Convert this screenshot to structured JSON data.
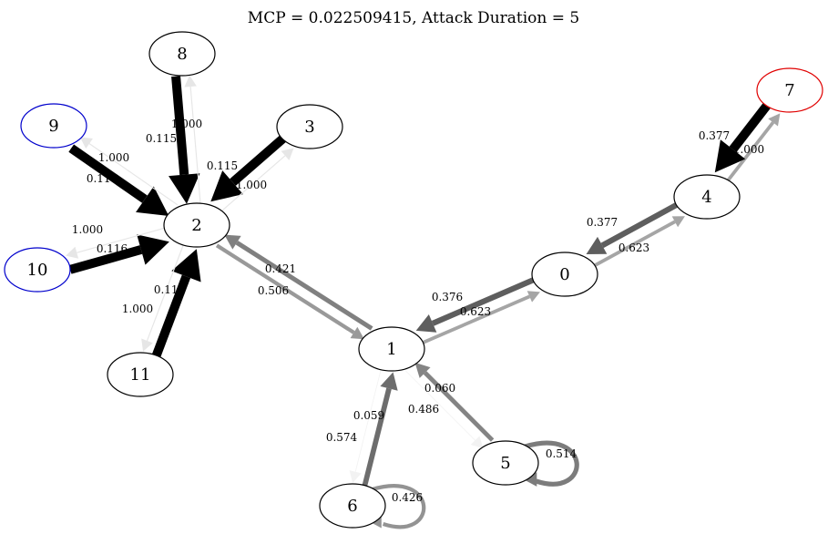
{
  "title": "MCP = 0.022509415, Attack Duration = 5",
  "nodes": [
    {
      "id": "0",
      "color": "#000000"
    },
    {
      "id": "1",
      "color": "#000000"
    },
    {
      "id": "2",
      "color": "#000000"
    },
    {
      "id": "3",
      "color": "#000000"
    },
    {
      "id": "4",
      "color": "#000000"
    },
    {
      "id": "5",
      "color": "#000000"
    },
    {
      "id": "6",
      "color": "#000000"
    },
    {
      "id": "7",
      "color": "#e00000"
    },
    {
      "id": "8",
      "color": "#000000"
    },
    {
      "id": "9",
      "color": "#0000cc"
    },
    {
      "id": "10",
      "color": "#0000cc"
    },
    {
      "id": "11",
      "color": "#000000"
    }
  ],
  "edges": [
    {
      "from": "8",
      "to": "2",
      "label": "1.000",
      "color": "#000000",
      "weight": 1.0
    },
    {
      "from": "2",
      "to": "8",
      "label": "0.115",
      "color": "#e6e6e6",
      "weight": 0.115
    },
    {
      "from": "9",
      "to": "2",
      "label": "1.000",
      "color": "#000000",
      "weight": 1.0
    },
    {
      "from": "2",
      "to": "9",
      "label": "0.116",
      "color": "#e6e6e6",
      "weight": 0.116
    },
    {
      "from": "3",
      "to": "2",
      "label": "1.000",
      "color": "#000000",
      "weight": 1.0
    },
    {
      "from": "2",
      "to": "3",
      "label": "0.115",
      "color": "#e6e6e6",
      "weight": 0.115
    },
    {
      "from": "10",
      "to": "2",
      "label": "1.000",
      "color": "#000000",
      "weight": 1.0
    },
    {
      "from": "2",
      "to": "10",
      "label": "0.116",
      "color": "#e6e6e6",
      "weight": 0.116
    },
    {
      "from": "11",
      "to": "2",
      "label": "1.000",
      "color": "#000000",
      "weight": 1.0
    },
    {
      "from": "2",
      "to": "11",
      "label": "0.116",
      "color": "#e6e6e6",
      "weight": 0.116
    },
    {
      "from": "2",
      "to": "1",
      "label": "0.421",
      "color": "#999999",
      "weight": 0.421
    },
    {
      "from": "1",
      "to": "2",
      "label": "0.506",
      "color": "#808080",
      "weight": 0.506
    },
    {
      "from": "1",
      "to": "0",
      "label": "0.376",
      "color": "#a5a5a5",
      "weight": 0.376
    },
    {
      "from": "0",
      "to": "1",
      "label": "0.623",
      "color": "#5e5e5e",
      "weight": 0.623
    },
    {
      "from": "0",
      "to": "4",
      "label": "0.377",
      "color": "#a5a5a5",
      "weight": 0.377
    },
    {
      "from": "4",
      "to": "0",
      "label": "0.623",
      "color": "#5e5e5e",
      "weight": 0.623
    },
    {
      "from": "4",
      "to": "7",
      "label": "0.377",
      "color": "#a5a5a5",
      "weight": 0.377
    },
    {
      "from": "7",
      "to": "4",
      "label": "1.000",
      "color": "#000000",
      "weight": 1.0
    },
    {
      "from": "1",
      "to": "5",
      "label": "0.060",
      "color": "#f2f2f2",
      "weight": 0.06
    },
    {
      "from": "5",
      "to": "1",
      "label": "0.486",
      "color": "#848484",
      "weight": 0.486
    },
    {
      "from": "1",
      "to": "6",
      "label": "0.059",
      "color": "#f2f2f2",
      "weight": 0.059
    },
    {
      "from": "6",
      "to": "1",
      "label": "0.574",
      "color": "#6d6d6d",
      "weight": 0.574
    },
    {
      "from": "5",
      "to": "5",
      "label": "0.514",
      "color": "#7c7c7c",
      "weight": 0.514
    },
    {
      "from": "6",
      "to": "6",
      "label": "0.426",
      "color": "#939393",
      "weight": 0.426
    }
  ]
}
